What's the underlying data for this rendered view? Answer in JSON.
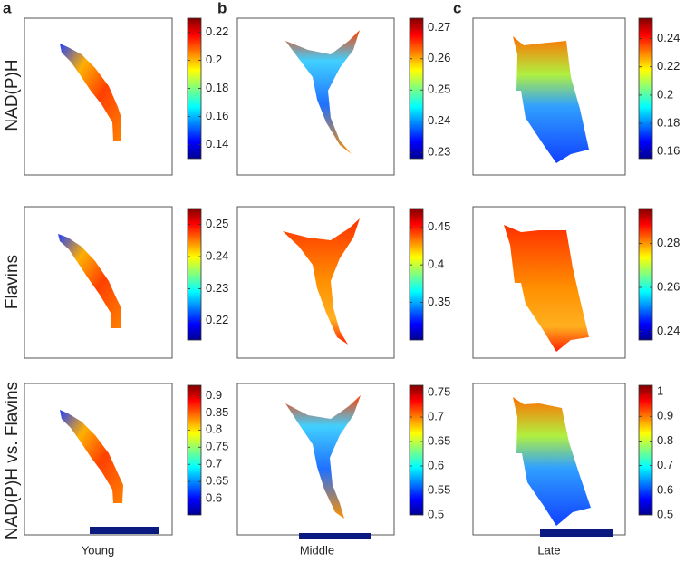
{
  "panel_letters": [
    "a",
    "b",
    "c"
  ],
  "row_labels": [
    "NAD(P)H",
    "Flavins",
    "NAD(P)H vs. Flavins"
  ],
  "column_labels": [
    "Young",
    "Middle",
    "Late"
  ],
  "panels": [
    [
      {
        "clim": [
          0.13,
          0.23
        ],
        "ticks": [
          0.14,
          0.16,
          0.18,
          0.2,
          0.22
        ]
      },
      {
        "clim": [
          0.228,
          0.273
        ],
        "ticks": [
          0.23,
          0.24,
          0.25,
          0.26,
          0.27
        ]
      },
      {
        "clim": [
          0.155,
          0.2545
        ],
        "ticks": [
          0.16,
          0.18,
          0.2,
          0.22,
          0.24
        ]
      }
    ],
    [
      {
        "clim": [
          0.214,
          0.255
        ],
        "ticks": [
          0.22,
          0.23,
          0.24,
          0.25
        ]
      },
      {
        "clim": [
          0.3,
          0.475
        ],
        "ticks": [
          0.35,
          0.4,
          0.45
        ]
      },
      {
        "clim": [
          0.236,
          0.296
        ],
        "ticks": [
          0.24,
          0.26,
          0.28
        ]
      }
    ],
    [
      {
        "clim": [
          0.553,
          0.93
        ],
        "ticks": [
          0.6,
          0.65,
          0.7,
          0.75,
          0.8,
          0.85,
          0.9
        ]
      },
      {
        "clim": [
          0.5,
          0.765
        ],
        "ticks": [
          0.5,
          0.55,
          0.6,
          0.65,
          0.7,
          0.75
        ]
      },
      {
        "clim": [
          0.5,
          1.026
        ],
        "ticks": [
          0.5,
          0.6,
          0.7,
          0.8,
          0.9,
          1
        ]
      }
    ]
  ]
}
